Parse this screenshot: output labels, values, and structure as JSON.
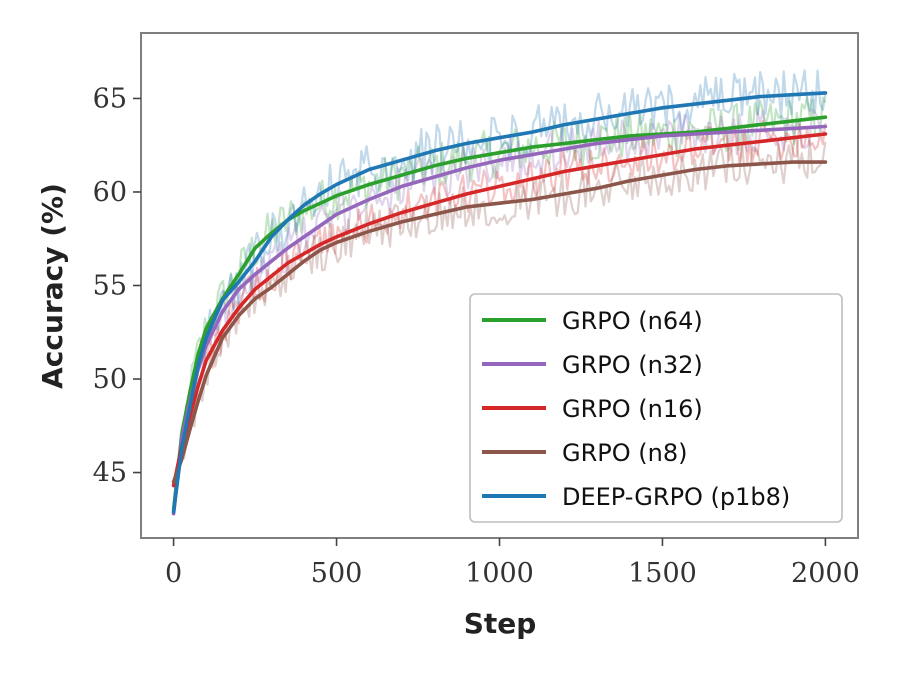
{
  "chart_data": {
    "type": "line",
    "title": "",
    "xlabel": "Step",
    "ylabel": "Accuracy (%)",
    "xlim": [
      -100,
      2100
    ],
    "ylim": [
      41.5,
      68.5
    ],
    "xticks": [
      0,
      500,
      1000,
      1500,
      2000
    ],
    "xtick_labels": [
      "0",
      "500",
      "1000",
      "1500",
      "2000"
    ],
    "yticks": [
      45,
      50,
      55,
      60,
      65
    ],
    "ytick_labels": [
      "45",
      "50",
      "55",
      "60",
      "65"
    ],
    "grid": false,
    "legend_position": "lower-right",
    "x": [
      0,
      25,
      50,
      75,
      100,
      150,
      200,
      250,
      300,
      350,
      400,
      450,
      500,
      600,
      700,
      800,
      900,
      1000,
      1100,
      1200,
      1300,
      1400,
      1500,
      1600,
      1700,
      1800,
      1900,
      2000
    ],
    "series": [
      {
        "name": "GRPO (n64)",
        "color": "#2ca02c",
        "values": [
          43.0,
          47.0,
          49.3,
          51.3,
          52.7,
          54.3,
          55.6,
          57.0,
          57.8,
          58.5,
          59.0,
          59.4,
          59.8,
          60.4,
          60.9,
          61.4,
          61.8,
          62.1,
          62.4,
          62.6,
          62.8,
          63.0,
          63.1,
          63.2,
          63.4,
          63.6,
          63.8,
          64.0
        ],
        "noise_amp": 1.3
      },
      {
        "name": "GRPO (n32)",
        "color": "#9467bd",
        "values": [
          42.8,
          46.8,
          48.8,
          50.5,
          51.8,
          53.6,
          54.8,
          55.6,
          56.3,
          57.0,
          57.6,
          58.2,
          58.8,
          59.6,
          60.3,
          60.8,
          61.3,
          61.7,
          62.0,
          62.3,
          62.6,
          62.8,
          63.0,
          63.1,
          63.2,
          63.3,
          63.4,
          63.5
        ],
        "noise_amp": 1.2
      },
      {
        "name": "GRPO (n16)",
        "color": "#d62728",
        "values": [
          44.3,
          46.4,
          48.0,
          49.6,
          51.0,
          52.6,
          53.8,
          54.8,
          55.5,
          56.2,
          56.7,
          57.2,
          57.6,
          58.3,
          58.9,
          59.4,
          59.9,
          60.3,
          60.7,
          61.1,
          61.4,
          61.7,
          62.0,
          62.3,
          62.5,
          62.7,
          62.9,
          63.1
        ],
        "noise_amp": 1.1
      },
      {
        "name": "GRPO (n8)",
        "color": "#8c564b",
        "values": [
          44.5,
          45.7,
          47.3,
          48.8,
          50.2,
          52.2,
          53.4,
          54.3,
          54.9,
          55.6,
          56.3,
          56.9,
          57.3,
          57.9,
          58.4,
          58.8,
          59.2,
          59.4,
          59.6,
          59.9,
          60.2,
          60.6,
          60.9,
          61.2,
          61.4,
          61.5,
          61.6,
          61.6
        ],
        "noise_amp": 1.2
      },
      {
        "name": "DEEP-GRPO (p1b8)",
        "color": "#1f77b4",
        "values": [
          42.9,
          46.3,
          48.5,
          50.7,
          52.2,
          54.2,
          55.2,
          56.3,
          57.6,
          58.5,
          59.3,
          59.9,
          60.4,
          61.2,
          61.7,
          62.2,
          62.6,
          62.9,
          63.2,
          63.6,
          63.9,
          64.2,
          64.5,
          64.7,
          64.9,
          65.1,
          65.2,
          65.3
        ],
        "noise_amp": 1.4
      }
    ]
  }
}
